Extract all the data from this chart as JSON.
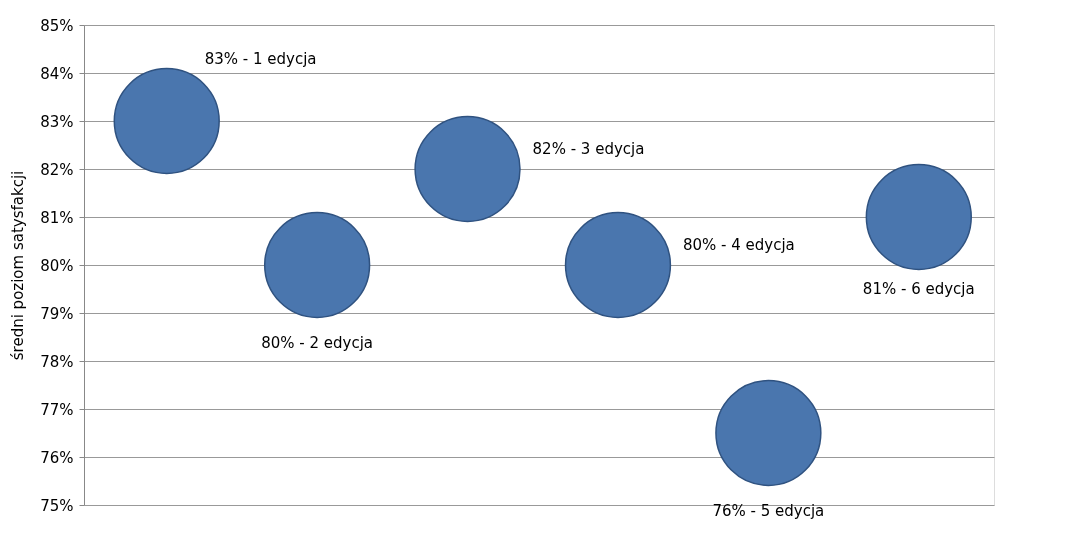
{
  "chart_data": {
    "type": "bubble",
    "ylabel": "średni poziom satysfakcji",
    "categories": [
      null,
      null,
      null,
      null,
      null,
      null
    ],
    "values": [
      83,
      80,
      82,
      80,
      76.5,
      81
    ],
    "sizes": [
      1,
      1,
      1,
      1,
      1,
      1
    ],
    "value_labels": [
      "83% - 1 edycja",
      "80% - 2 edycja",
      "82% - 3 edycja",
      "80% - 4 edycja",
      "76% - 5 edycja",
      "81% - 6 edycja"
    ],
    "color": "#4a76ae",
    "ylim": [
      75,
      85
    ],
    "yticks": [
      {
        "value": 75,
        "label": "75%"
      },
      {
        "value": 76,
        "label": "76%"
      },
      {
        "value": 77,
        "label": "77%"
      },
      {
        "value": 78,
        "label": "78%"
      },
      {
        "value": 79,
        "label": "79%"
      },
      {
        "value": 80,
        "label": "80%"
      },
      {
        "value": 81,
        "label": "81%"
      },
      {
        "value": 82,
        "label": "82%"
      },
      {
        "value": 83,
        "label": "83%"
      },
      {
        "value": 84,
        "label": "84%"
      },
      {
        "value": 85,
        "label": "85%"
      }
    ],
    "grid": "y"
  }
}
